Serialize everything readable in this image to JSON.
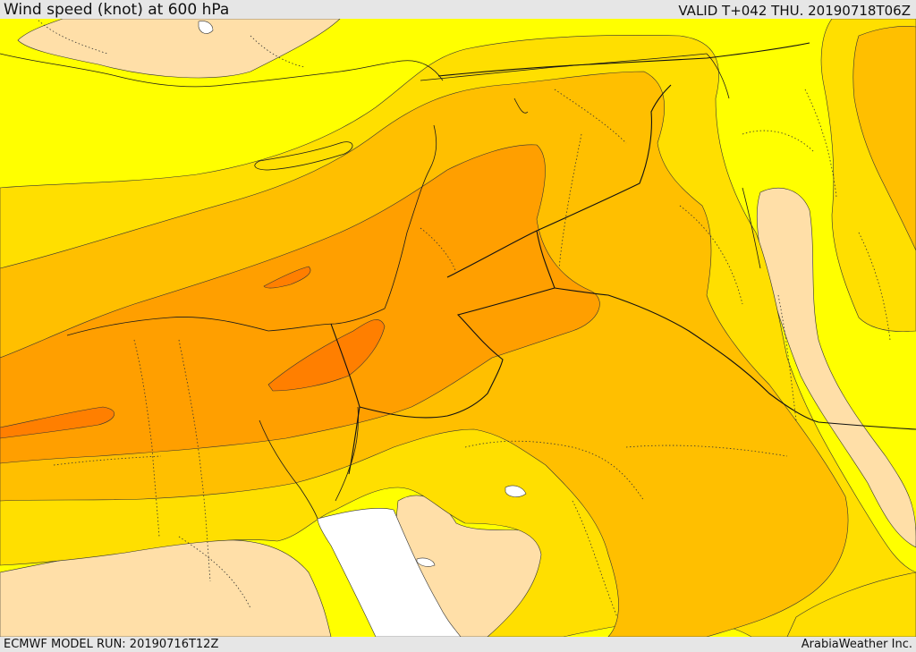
{
  "header": {
    "title": "Wind speed (knot) at 600 hPa",
    "valid": "VALID T+042 THU. 20190718T06Z"
  },
  "footer": {
    "model_run": "ECMWF MODEL RUN: 20190716T12Z",
    "provider": "ArabiaWeather Inc."
  },
  "colors": {
    "band_lowest": "#ffdfa8",
    "band_low": "#ffff00",
    "band_mid_low": "#ffdf00",
    "band_mid": "#ffbf00",
    "band_mid_high": "#ff9f00",
    "band_high": "#ff7f00",
    "sea_gap": "#ffffff",
    "lines": "#1a1a1a"
  }
}
